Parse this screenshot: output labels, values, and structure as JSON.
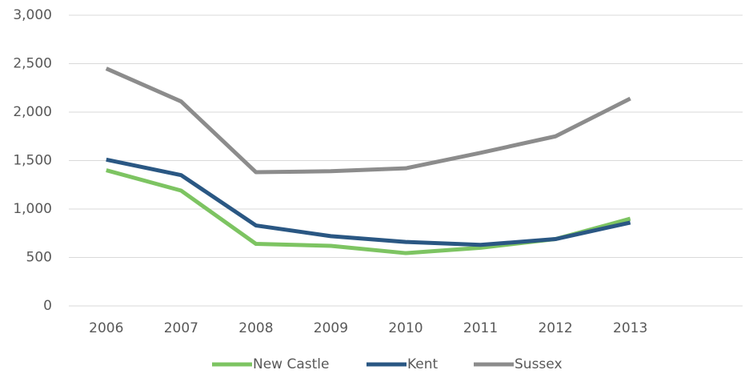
{
  "chart_data": {
    "type": "line",
    "categories": [
      "2006",
      "2007",
      "2008",
      "2009",
      "2010",
      "2011",
      "2012",
      "2013",
      null
    ],
    "series": [
      {
        "name": "New Castle",
        "color": "#7dc462",
        "values": [
          1400,
          1190,
          640,
          620,
          545,
          600,
          690,
          900,
          null
        ]
      },
      {
        "name": "Kent",
        "color": "#2a5783",
        "values": [
          1510,
          1350,
          830,
          720,
          660,
          630,
          690,
          860,
          null
        ]
      },
      {
        "name": "Sussex",
        "color": "#8c8c8c",
        "values": [
          2450,
          2110,
          1380,
          1390,
          1420,
          1580,
          1750,
          2140,
          null
        ]
      }
    ],
    "ylim": [
      0,
      3000
    ],
    "yticks": [
      0,
      500,
      {
        "value": 1000,
        "label": "1,000"
      },
      {
        "value": 1500,
        "label": "1,500"
      },
      {
        "value": 2000,
        "label": "2,000"
      },
      {
        "value": 2500,
        "label": "2,500"
      },
      {
        "value": 3000,
        "label": "3,000"
      }
    ],
    "grid": true,
    "legend": "bottom"
  }
}
